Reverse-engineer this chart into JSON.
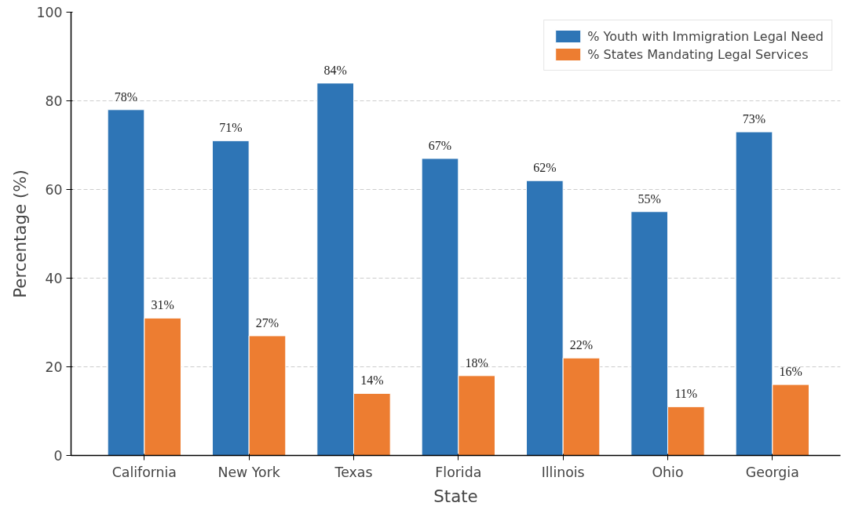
{
  "chart_data": {
    "type": "bar",
    "xlabel": "State",
    "ylabel": "Percentage (%)",
    "categories": [
      "California",
      "New York",
      "Texas",
      "Florida",
      "Illinois",
      "Ohio",
      "Georgia"
    ],
    "series": [
      {
        "name": "% Youth with Immigration Legal Need",
        "color": "#2e75b6",
        "values": [
          78,
          71,
          84,
          67,
          62,
          55,
          73
        ],
        "value_labels": [
          "78%",
          "71%",
          "84%",
          "67%",
          "62%",
          "55%",
          "73%"
        ]
      },
      {
        "name": "% States Mandating Legal Services",
        "color": "#ed7d31",
        "values": [
          31,
          27,
          14,
          18,
          22,
          11,
          16
        ],
        "value_labels": [
          "31%",
          "27%",
          "14%",
          "18%",
          "22%",
          "11%",
          "16%"
        ]
      }
    ],
    "ylim": [
      0,
      100
    ],
    "yticks": [
      0,
      20,
      40,
      60,
      80,
      100
    ],
    "grid": "y",
    "legend": "top right"
  }
}
